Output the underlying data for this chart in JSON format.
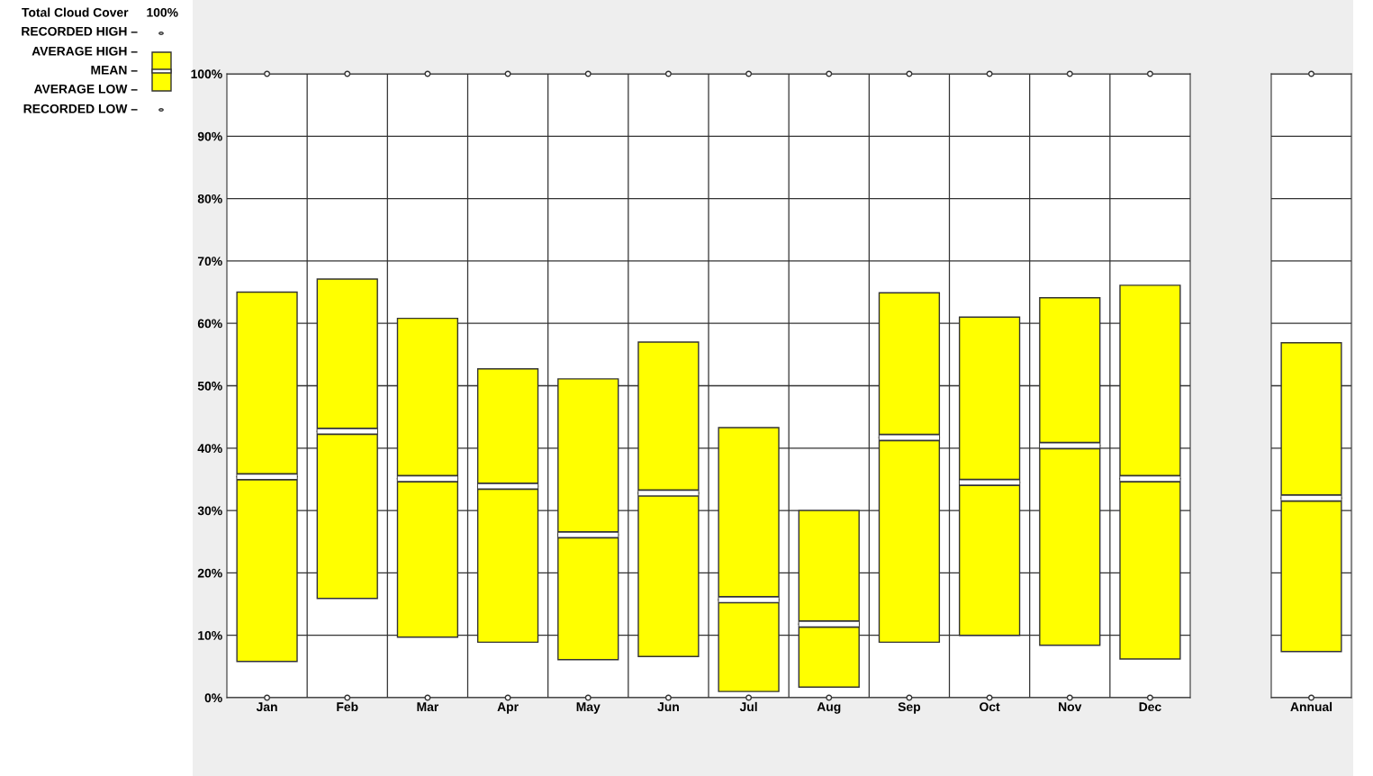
{
  "chart_data": [
    {
      "type": "bar",
      "stacked": true,
      "title": "Total Cloud Cover",
      "annotations": [
        "100%",
        "RECORDED HIGH –",
        "AVERAGE HIGH –",
        "MEAN –",
        "AVERAGE LOW –",
        "RECORDED LOW –"
      ],
      "grid": true,
      "categories": [
        "Jan",
        "Feb",
        "Mar",
        "Apr",
        "May",
        "Jun",
        "Jul",
        "Aug",
        "Sep",
        "Oct",
        "Nov",
        "Dec"
      ],
      "series": [
        {
          "color": "#ffff00",
          "base": [
            5.8,
            15.9,
            9.7,
            8.9,
            6.1,
            6.6,
            1,
            1.7,
            8.9,
            10,
            8.4,
            6.2
          ],
          "values": [
            29.6,
            26.8,
            25.4,
            25.0,
            20.0,
            26.2,
            14.7,
            10.1,
            32.8,
            24.5,
            32.0,
            28.9
          ]
        },
        {
          "color": "#ffff00",
          "values": [
            29.6,
            24.4,
            25.7,
            18.8,
            25.0,
            24.2,
            27.6,
            18.2,
            23.2,
            26.5,
            23.7,
            31.0
          ]
        },
        {
          "type": "scatter",
          "color": "#ffffff",
          "marker": "circle",
          "values": [
            100,
            100,
            100,
            100,
            100,
            100,
            100,
            100,
            100,
            100,
            100,
            100
          ]
        },
        {
          "type": "scatter",
          "color": "#ffffff",
          "marker": "circle",
          "values": [
            0,
            0,
            0,
            0,
            0,
            0,
            0,
            0,
            0,
            0,
            0,
            0
          ]
        }
      ],
      "ylim": [
        0,
        100
      ],
      "yticks": [
        {
          "value": 0,
          "label": "0%"
        },
        {
          "value": 10,
          "label": "10%"
        },
        {
          "value": 20,
          "label": "20%"
        },
        {
          "value": 30,
          "label": "30%"
        },
        {
          "value": 40,
          "label": "40%"
        },
        {
          "value": 50,
          "label": "50%"
        },
        {
          "value": 60,
          "label": "60%"
        },
        {
          "value": 70,
          "label": "70%"
        },
        {
          "value": 80,
          "label": "80%"
        },
        {
          "value": 90,
          "label": "90%"
        },
        {
          "value": 100,
          "label": "100%"
        }
      ]
    },
    {
      "type": "bar",
      "stacked": true,
      "grid": true,
      "tick_labels": "x",
      "categories": [
        "Annual"
      ],
      "series": [
        {
          "color": "#ffff00",
          "base": [
            7.4
          ],
          "values": [
            24.6
          ]
        },
        {
          "color": "#ffff00",
          "values": [
            24.9
          ]
        },
        {
          "type": "scatter",
          "color": "#ffffff",
          "marker": "circle",
          "values": [
            100
          ]
        },
        {
          "type": "scatter",
          "color": "#ffffff",
          "marker": "circle",
          "values": [
            0
          ]
        }
      ],
      "ylim": [
        0,
        100
      ],
      "yticks": [
        0,
        10,
        20,
        30,
        40,
        50,
        60,
        70,
        80,
        90,
        100
      ]
    }
  ]
}
